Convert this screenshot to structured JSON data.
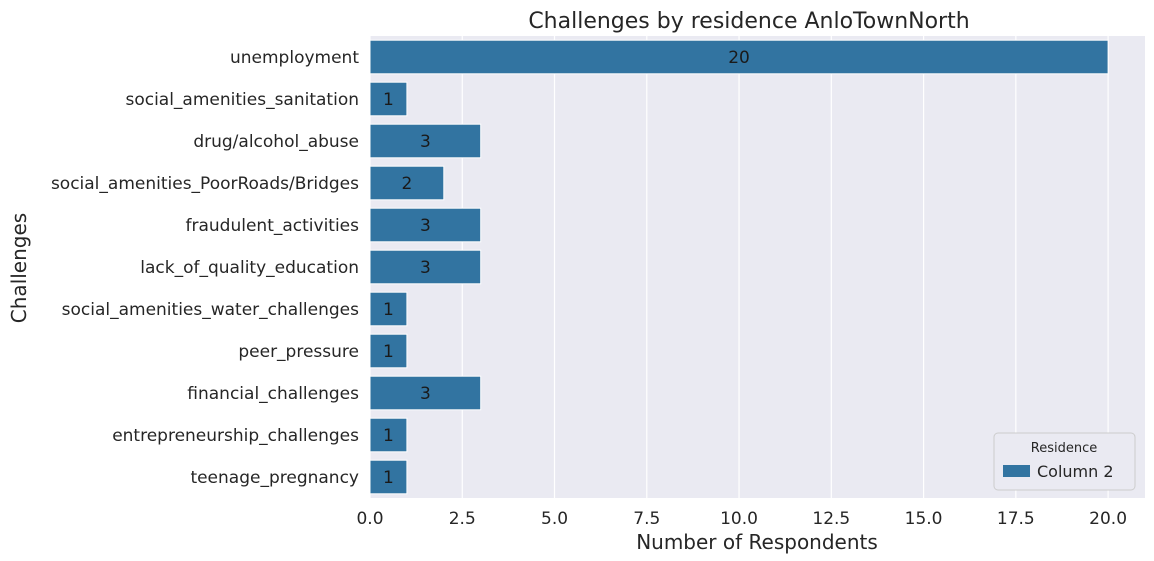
{
  "chart_data": {
    "type": "bar",
    "orientation": "horizontal",
    "title": "Challenges by residence AnloTownNorth",
    "xlabel": "Number of Respondents",
    "ylabel": "Challenges",
    "categories": [
      "unemployment",
      "social_amenities_sanitation",
      "drug/alcohol_abuse",
      "social_amenities_PoorRoads/Bridges",
      "fraudulent_activities",
      "lack_of_quality_education",
      "social_amenities_water_challenges",
      "peer_pressure",
      "financial_challenges",
      "entrepreneurship_challenges",
      "teenage_pregnancy"
    ],
    "series": [
      {
        "name": "Column 2",
        "values": [
          20,
          1,
          3,
          2,
          3,
          3,
          1,
          1,
          3,
          1,
          1
        ]
      }
    ],
    "xlim": [
      0,
      21
    ],
    "xticks": [
      0,
      2.5,
      5,
      7.5,
      10,
      12.5,
      15,
      17.5,
      20
    ],
    "xtick_labels": [
      "0.0",
      "2.5",
      "5.0",
      "7.5",
      "10.0",
      "12.5",
      "15.0",
      "17.5",
      "20.0"
    ],
    "grid": true,
    "legend": {
      "title": "Residence",
      "placement": "bottom-right"
    },
    "colors": {
      "bar": "#3274a1",
      "plot_background": "#eaeaf2",
      "grid": "#ffffff"
    }
  }
}
